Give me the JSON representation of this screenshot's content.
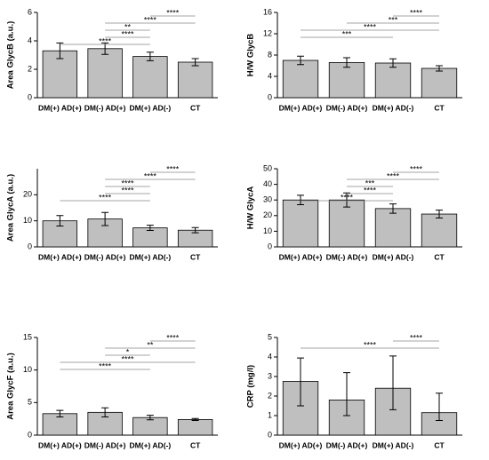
{
  "chart_data": [
    {
      "type": "bar",
      "ylabel": "Area GlycB (a.u.)",
      "categories": [
        "DM(+) AD(+)",
        "DM(-) AD(+)",
        "DM(+) AD(-)",
        "CT"
      ],
      "values": [
        3.3,
        3.45,
        2.9,
        2.5
      ],
      "errors": [
        0.55,
        0.4,
        0.3,
        0.25
      ],
      "color": "#bfbfbf",
      "ylim": [
        0,
        6
      ],
      "yticks": [
        0,
        2,
        4,
        6
      ],
      "brackets": [
        {
          "between": [
            0,
            2
          ],
          "label": "****"
        },
        {
          "between": [
            1,
            2
          ],
          "label": "****"
        },
        {
          "between": [
            1,
            2
          ],
          "label": "**"
        },
        {
          "between": [
            1,
            3
          ],
          "label": "****"
        },
        {
          "between": [
            2,
            3
          ],
          "label": "****"
        }
      ]
    },
    {
      "type": "bar",
      "ylabel": "H/W GlycB",
      "categories": [
        "DM(+) AD(+)",
        "DM(-) AD(+)",
        "DM(+) AD(-)",
        "CT"
      ],
      "values": [
        7.0,
        6.6,
        6.5,
        5.5
      ],
      "errors": [
        0.8,
        0.9,
        0.8,
        0.5
      ],
      "color": "#bfbfbf",
      "ylim": [
        0,
        16
      ],
      "yticks": [
        0,
        4,
        8,
        12,
        16
      ],
      "brackets": [
        {
          "between": [
            0,
            2
          ],
          "label": "***"
        },
        {
          "between": [
            0,
            3
          ],
          "label": "****"
        },
        {
          "between": [
            1,
            3
          ],
          "label": "***"
        },
        {
          "between": [
            2,
            3
          ],
          "label": "****"
        }
      ]
    },
    {
      "type": "bar",
      "ylabel": "Area GlycA (a.u.)",
      "categories": [
        "DM(+) AD(+)",
        "DM(-) AD(+)",
        "DM(+) AD(-)",
        "CT"
      ],
      "values": [
        10,
        10.7,
        7.3,
        6.4
      ],
      "errors": [
        2,
        2.5,
        1,
        1
      ],
      "color": "#bfbfbf",
      "ylim": [
        0,
        30
      ],
      "yticks": [
        0,
        10,
        20
      ],
      "brackets": [
        {
          "between": [
            0,
            2
          ],
          "label": "****"
        },
        {
          "between": [
            1,
            2
          ],
          "label": "****"
        },
        {
          "between": [
            1,
            2
          ],
          "label": "****"
        },
        {
          "between": [
            1,
            3
          ],
          "label": "****"
        },
        {
          "between": [
            2,
            3
          ],
          "label": "****"
        }
      ]
    },
    {
      "type": "bar",
      "ylabel": "H/W GlycA",
      "categories": [
        "DM(+) AD(+)",
        "DM(-) AD(+)",
        "DM(+) AD(-)",
        "CT"
      ],
      "values": [
        30,
        30,
        24.5,
        21
      ],
      "errors": [
        3,
        4.5,
        3,
        2.5
      ],
      "color": "#bfbfbf",
      "ylim": [
        0,
        50
      ],
      "yticks": [
        0,
        10,
        20,
        30,
        40,
        50
      ],
      "brackets": [
        {
          "between": [
            0,
            2
          ],
          "label": "****"
        },
        {
          "between": [
            1,
            2
          ],
          "label": "****"
        },
        {
          "between": [
            1,
            2
          ],
          "label": "***"
        },
        {
          "between": [
            1,
            3
          ],
          "label": "****"
        },
        {
          "between": [
            2,
            3
          ],
          "label": "****"
        }
      ]
    },
    {
      "type": "bar",
      "ylabel": "Area GlycF (a.u.)",
      "categories": [
        "DM(+) AD(+)",
        "DM(-) AD(+)",
        "DM(+) AD(-)",
        "CT"
      ],
      "values": [
        3.3,
        3.5,
        2.7,
        2.4
      ],
      "errors": [
        0.5,
        0.7,
        0.35,
        0.15
      ],
      "color": "#bfbfbf",
      "ylim": [
        0,
        15
      ],
      "yticks": [
        0,
        5,
        10,
        15
      ],
      "brackets": [
        {
          "between": [
            0,
            2
          ],
          "label": "****"
        },
        {
          "between": [
            0,
            3
          ],
          "label": "****"
        },
        {
          "between": [
            1,
            2
          ],
          "label": "*"
        },
        {
          "between": [
            1,
            3
          ],
          "label": "**"
        },
        {
          "between": [
            2,
            3
          ],
          "label": "****"
        }
      ]
    },
    {
      "type": "bar",
      "ylabel": "CRP (mg/l)",
      "categories": [
        "DM(+) AD(+)",
        "DM(-) AD(+)",
        "DM(+) AD(-)",
        "CT"
      ],
      "values": [
        2.75,
        1.8,
        2.4,
        1.15
      ],
      "lower": [
        1.5,
        1.0,
        1.3,
        0.75
      ],
      "upper": [
        3.95,
        3.2,
        4.05,
        2.15
      ],
      "color": "#bfbfbf",
      "ylim": [
        0,
        5
      ],
      "yticks": [
        0,
        1,
        2,
        3,
        4,
        5
      ],
      "brackets": [
        {
          "between": [
            0,
            3
          ],
          "label": "****"
        },
        {
          "between": [
            2,
            3
          ],
          "label": "****"
        }
      ]
    }
  ]
}
